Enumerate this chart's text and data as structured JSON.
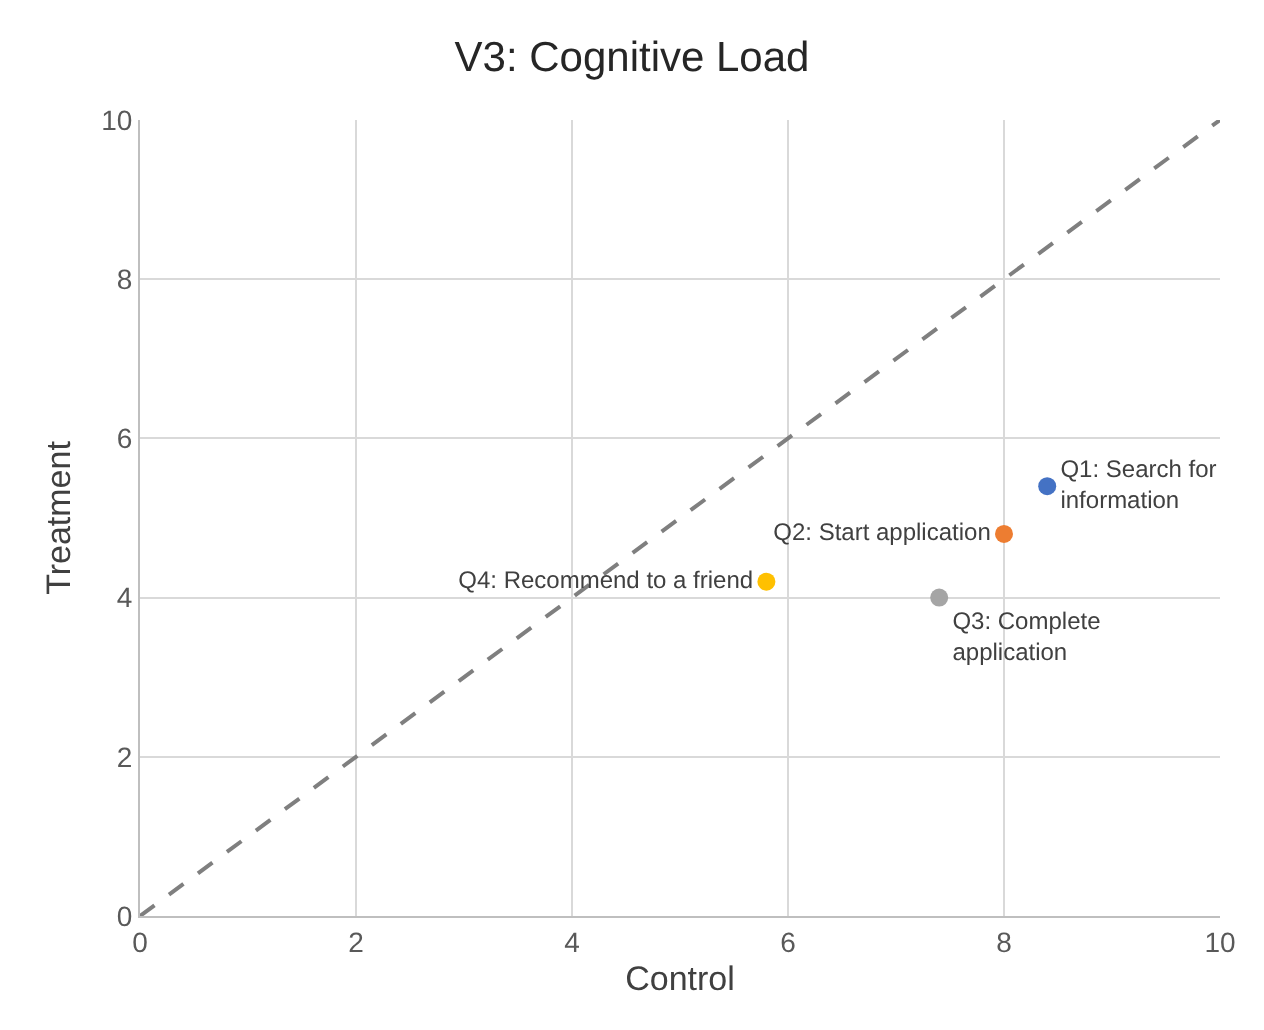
{
  "chart_data": {
    "type": "scatter",
    "title": "V3: Cognitive Load",
    "xlabel": "Control",
    "ylabel": "Treatment",
    "xlim": [
      0,
      10
    ],
    "xticks": [
      0,
      2,
      4,
      6,
      8,
      10
    ],
    "ylim": [
      0,
      10
    ],
    "yticks": [
      0,
      2,
      4,
      6,
      8,
      10
    ],
    "grid": true,
    "marker": "circle",
    "series": [
      {
        "type": "line",
        "color": "#7f7f7f",
        "line_style": "dashed",
        "marker": "none",
        "x": [
          0,
          10
        ],
        "values": [
          0,
          10
        ]
      },
      {
        "name": "Q1: Search for\ninformation",
        "color": "#4472c4",
        "x": [
          8.4
        ],
        "values": [
          5.4
        ]
      },
      {
        "name": "Q2: Start application",
        "color": "#ed7d31",
        "x": [
          8.0
        ],
        "values": [
          4.8
        ]
      },
      {
        "name": "Q3: Complete\napplication",
        "color": "#a5a5a5",
        "x": [
          7.4
        ],
        "values": [
          4.0
        ]
      },
      {
        "name": "Q4: Recommend to a friend",
        "color": "#ffc000",
        "x": [
          5.8
        ],
        "values": [
          4.2
        ]
      }
    ]
  }
}
